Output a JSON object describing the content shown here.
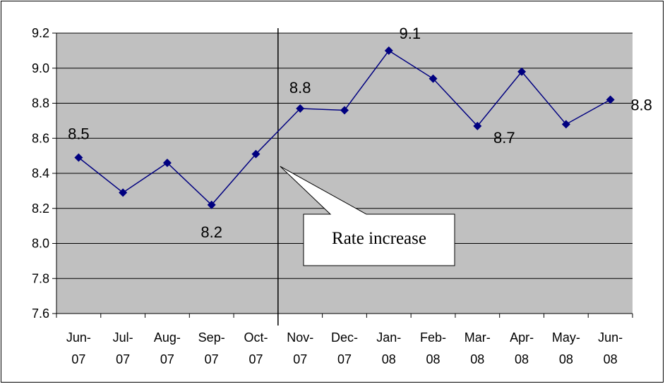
{
  "chart_data": {
    "type": "line",
    "title": "",
    "xlabel": "",
    "ylabel": "",
    "categories": [
      [
        "Jun-",
        "07"
      ],
      [
        "Jul-",
        "07"
      ],
      [
        "Aug-",
        "07"
      ],
      [
        "Sep-",
        "07"
      ],
      [
        "Oct-",
        "07"
      ],
      [
        "Nov-",
        "07"
      ],
      [
        "Dec-",
        "07"
      ],
      [
        "Jan-",
        "08"
      ],
      [
        "Feb-",
        "08"
      ],
      [
        "Mar-",
        "08"
      ],
      [
        "Apr-",
        "08"
      ],
      [
        "May-",
        "08"
      ],
      [
        "Jun-",
        "08"
      ]
    ],
    "series": [
      {
        "values": [
          8.49,
          8.29,
          8.46,
          8.22,
          8.51,
          8.77,
          8.76,
          9.1,
          8.94,
          8.67,
          8.98,
          8.68,
          8.82
        ]
      }
    ],
    "data_labels": [
      {
        "index": 0,
        "text": "8.5"
      },
      {
        "index": 3,
        "text": "8.2"
      },
      {
        "index": 5,
        "text": "8.8"
      },
      {
        "index": 7,
        "text": "9.1"
      },
      {
        "index": 9,
        "text": "8.7"
      },
      {
        "index": 12,
        "text": "8.8"
      }
    ],
    "ylim": [
      7.6,
      9.2
    ],
    "yticks": [
      "7.6",
      "7.8",
      "8.0",
      "8.2",
      "8.4",
      "8.6",
      "8.8",
      "9.0",
      "9.2"
    ],
    "grid": true,
    "legend": "none",
    "annotation": {
      "text": "Rate increase",
      "between_categories": [
        4,
        5
      ]
    },
    "colors": {
      "plot_background": "#c0c0c0",
      "series": "#000080",
      "gridline": "#000000"
    }
  }
}
